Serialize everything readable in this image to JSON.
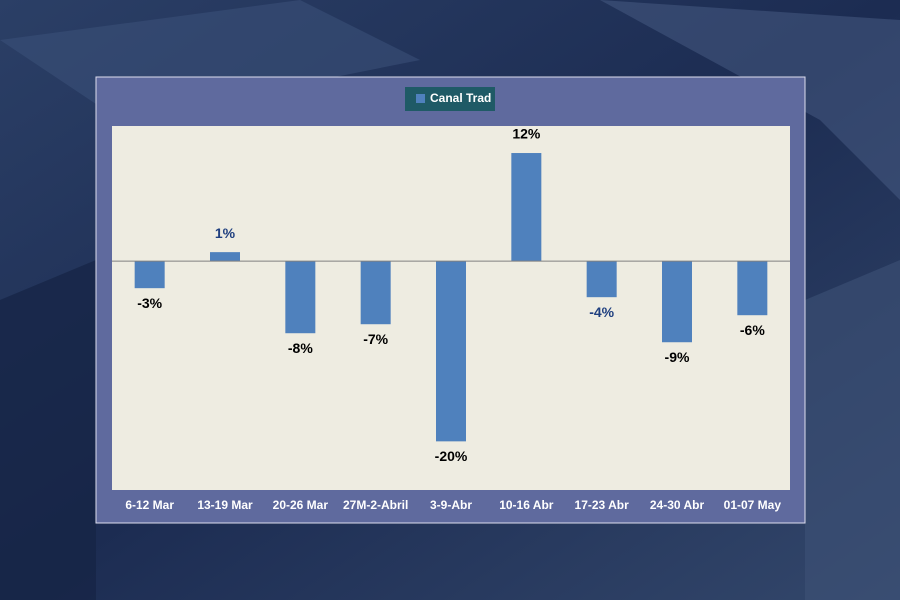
{
  "chart_data": {
    "type": "bar",
    "legend": "Canal Trad",
    "categories": [
      "6-12 Mar",
      "13-19 Mar",
      "20-26 Mar",
      "27M-2-Abril",
      "3-9-Abr",
      "10-16 Abr",
      "17-23 Abr",
      "24-30 Abr",
      "01-07 May"
    ],
    "values": [
      -3,
      1,
      -8,
      -7,
      -20,
      12,
      -4,
      -9,
      -6
    ],
    "value_labels": [
      "-3%",
      "1%",
      "-8%",
      "-7%",
      "-20%",
      "12%",
      "-4%",
      "-9%",
      "-6%"
    ],
    "value_label_colors": [
      "#000000",
      "#1f3f7f",
      "#000000",
      "#000000",
      "#000000",
      "#000000",
      "#1f3f7f",
      "#000000",
      "#000000"
    ],
    "color": "#4f81bd",
    "ylim": [
      -25.4,
      15
    ]
  }
}
